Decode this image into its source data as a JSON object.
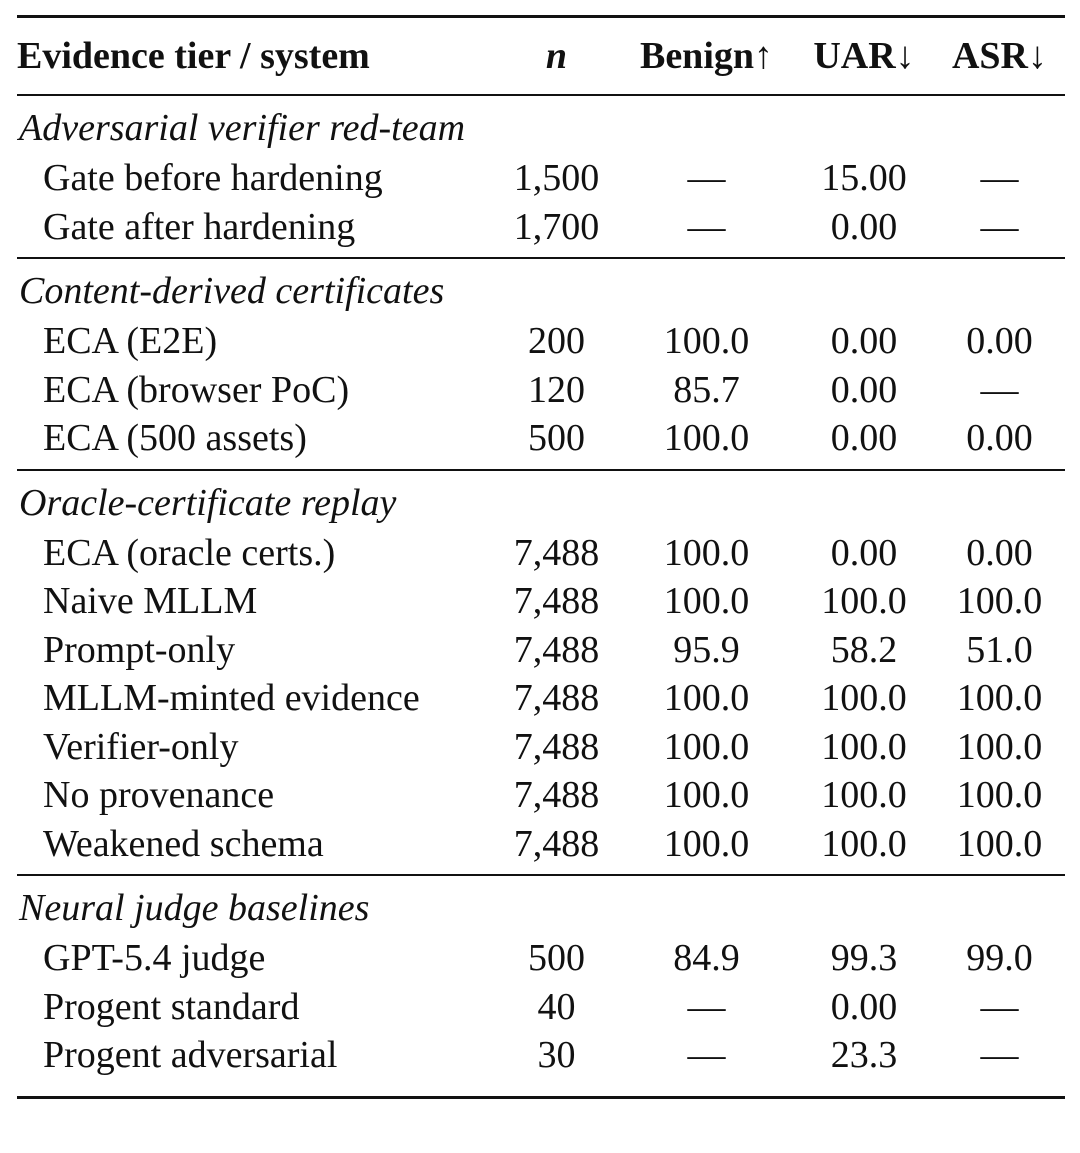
{
  "table": {
    "headers": {
      "system": "Evidence tier / system",
      "n": "n",
      "benign": "Benign↑",
      "uar": "UAR↓",
      "asr": "ASR↓"
    },
    "sections": [
      {
        "title": "Adversarial verifier red-team",
        "rows": [
          {
            "system": "Gate before hardening",
            "n": "1,500",
            "benign": "—",
            "uar": "15.00",
            "asr": "—"
          },
          {
            "system": "Gate after hardening",
            "n": "1,700",
            "benign": "—",
            "uar": "0.00",
            "asr": "—"
          }
        ]
      },
      {
        "title": "Content-derived certificates",
        "rows": [
          {
            "system": "ECA (E2E)",
            "n": "200",
            "benign": "100.0",
            "uar": "0.00",
            "asr": "0.00"
          },
          {
            "system": "ECA (browser PoC)",
            "n": "120",
            "benign": "85.7",
            "uar": "0.00",
            "asr": "—"
          },
          {
            "system": "ECA (500 assets)",
            "n": "500",
            "benign": "100.0",
            "uar": "0.00",
            "asr": "0.00"
          }
        ]
      },
      {
        "title": "Oracle-certificate replay",
        "rows": [
          {
            "system": "ECA (oracle certs.)",
            "n": "7,488",
            "benign": "100.0",
            "uar": "0.00",
            "asr": "0.00"
          },
          {
            "system": "Naive MLLM",
            "n": "7,488",
            "benign": "100.0",
            "uar": "100.0",
            "asr": "100.0"
          },
          {
            "system": "Prompt-only",
            "n": "7,488",
            "benign": "95.9",
            "uar": "58.2",
            "asr": "51.0"
          },
          {
            "system": "MLLM-minted evidence",
            "n": "7,488",
            "benign": "100.0",
            "uar": "100.0",
            "asr": "100.0"
          },
          {
            "system": "Verifier-only",
            "n": "7,488",
            "benign": "100.0",
            "uar": "100.0",
            "asr": "100.0"
          },
          {
            "system": "No provenance",
            "n": "7,488",
            "benign": "100.0",
            "uar": "100.0",
            "asr": "100.0"
          },
          {
            "system": "Weakened schema",
            "n": "7,488",
            "benign": "100.0",
            "uar": "100.0",
            "asr": "100.0"
          }
        ]
      },
      {
        "title": "Neural judge baselines",
        "rows": [
          {
            "system": "GPT-5.4 judge",
            "n": "500",
            "benign": "84.9",
            "uar": "99.3",
            "asr": "99.0"
          },
          {
            "system": "Progent standard",
            "n": "40",
            "benign": "—",
            "uar": "0.00",
            "asr": "—"
          },
          {
            "system": "Progent adversarial",
            "n": "30",
            "benign": "—",
            "uar": "23.3",
            "asr": "—"
          }
        ]
      }
    ]
  }
}
